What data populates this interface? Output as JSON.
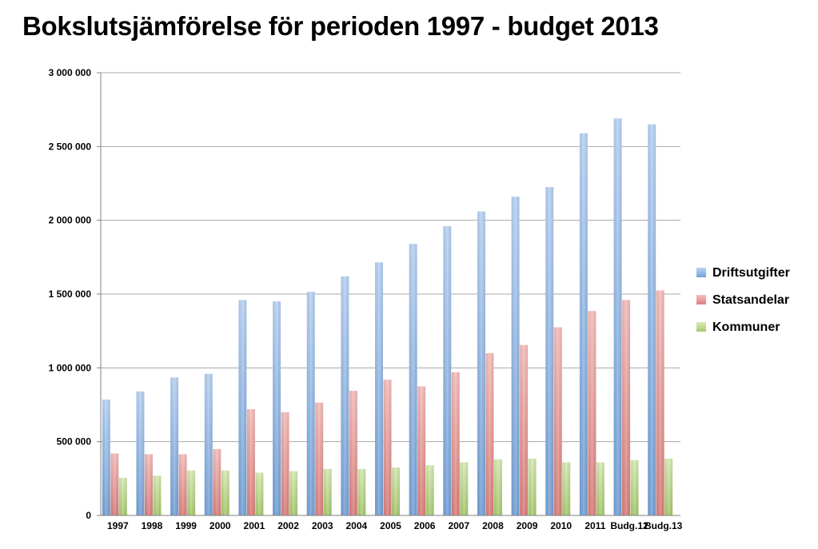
{
  "chart_data": {
    "type": "bar",
    "title": "Bokslutsjämförelse för perioden 1997 - budget 2013",
    "xlabel": "",
    "ylabel": "",
    "ylim": [
      0,
      3000000
    ],
    "yticks": [
      0,
      500000,
      1000000,
      1500000,
      2000000,
      2500000,
      3000000
    ],
    "ytick_labels": [
      "0",
      "500 000",
      "1 000 000",
      "1 500 000",
      "2 000 000",
      "2 500 000",
      "3 000 000"
    ],
    "grid": true,
    "legend_position": "right",
    "categories": [
      "1997",
      "1998",
      "1999",
      "2000",
      "2001",
      "2002",
      "2003",
      "2004",
      "2005",
      "2006",
      "2007",
      "2008",
      "2009",
      "2010",
      "2011",
      "Budg.12",
      "Budg.13"
    ],
    "series": [
      {
        "name": "Driftsutgifter",
        "color": "#7fb0ec",
        "values": [
          785000,
          840000,
          935000,
          960000,
          1460000,
          1450000,
          1515000,
          1620000,
          1715000,
          1840000,
          1960000,
          2060000,
          2160000,
          2225000,
          2590000,
          2690000,
          2650000
        ]
      },
      {
        "name": "Statsandelar",
        "color": "#ef8a86",
        "values": [
          420000,
          415000,
          415000,
          450000,
          720000,
          700000,
          765000,
          845000,
          920000,
          875000,
          970000,
          1100000,
          1155000,
          1275000,
          1385000,
          1460000,
          1525000
        ]
      },
      {
        "name": "Kommuner",
        "color": "#b8dc78",
        "values": [
          255000,
          270000,
          305000,
          305000,
          290000,
          300000,
          315000,
          315000,
          325000,
          340000,
          360000,
          380000,
          385000,
          360000,
          360000,
          375000,
          385000
        ]
      }
    ]
  }
}
